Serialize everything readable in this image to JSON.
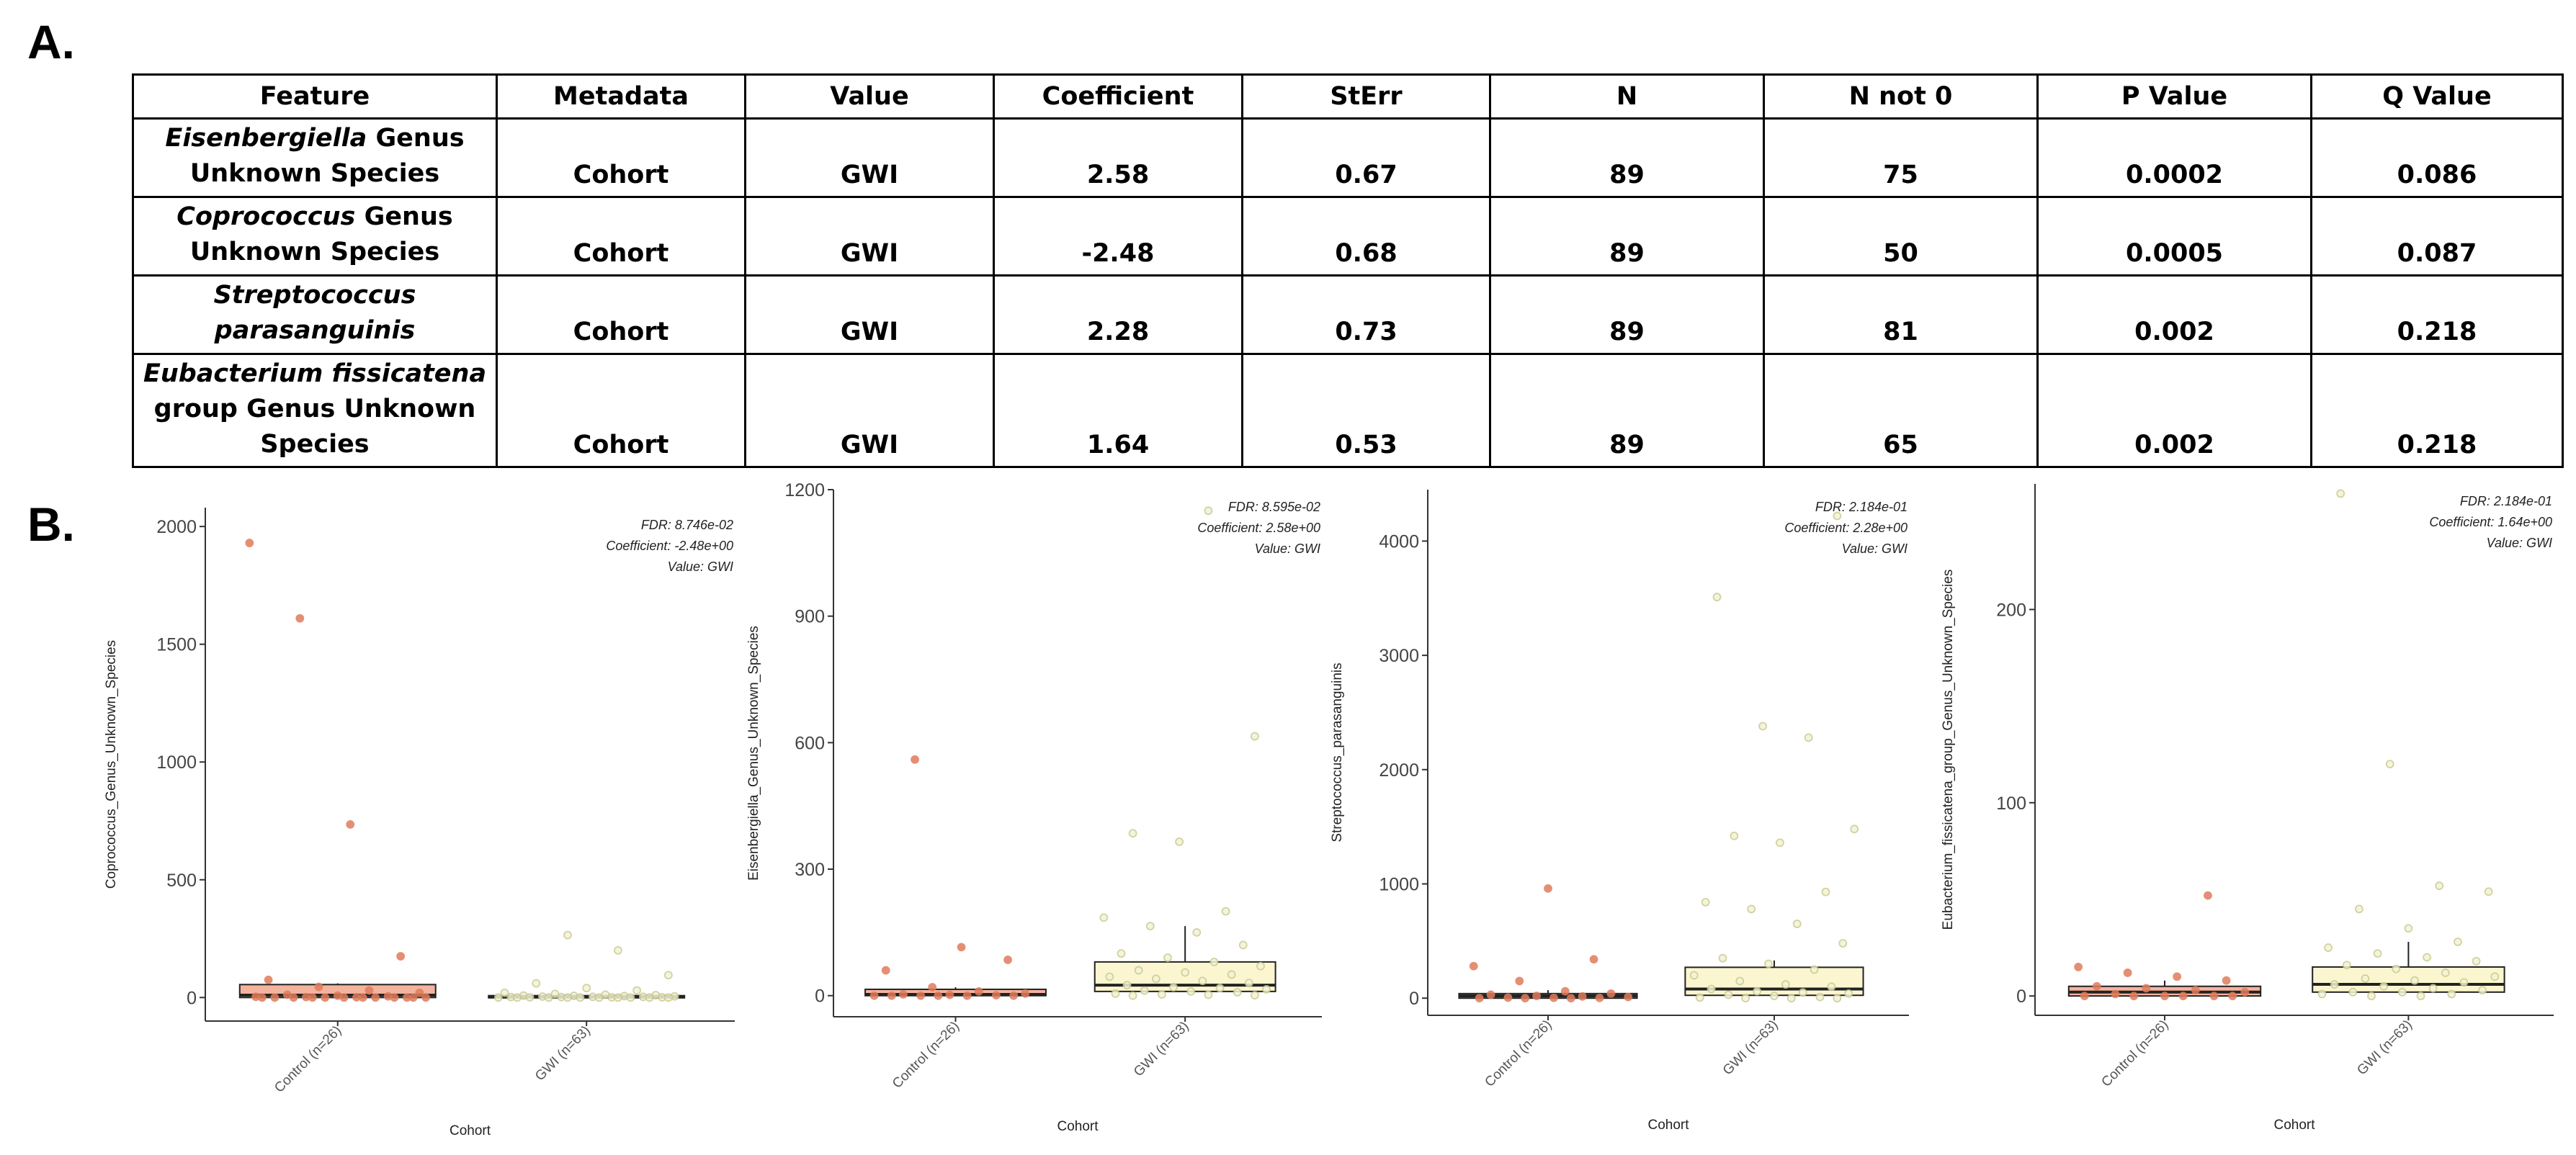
{
  "panel_a_label": "A.",
  "panel_b_label": "B.",
  "table": {
    "headers": [
      "Feature",
      "Metadata",
      "Value",
      "Coefficient",
      "StErr",
      "N",
      "N not 0",
      "P Value",
      "Q Value"
    ],
    "rows": [
      {
        "feature_italic": "Eisenbergiella",
        "feature_rest": " Genus Unknown Species",
        "metadata": "Cohort",
        "value": "GWI",
        "coefficient": "2.58",
        "sterr": "0.67",
        "n": "89",
        "n_not_0": "75",
        "p_value": "0.0002",
        "q_value": "0.086"
      },
      {
        "feature_italic": "Coprococcus",
        "feature_rest": " Genus Unknown Species",
        "metadata": "Cohort",
        "value": "GWI",
        "coefficient": "-2.48",
        "sterr": "0.68",
        "n": "89",
        "n_not_0": "50",
        "p_value": "0.0005",
        "q_value": "0.087"
      },
      {
        "feature_italic": "Streptococcus parasanguinis",
        "feature_rest": "",
        "metadata": "Cohort",
        "value": "GWI",
        "coefficient": "2.28",
        "sterr": "0.73",
        "n": "89",
        "n_not_0": "81",
        "p_value": "0.002",
        "q_value": "0.218"
      },
      {
        "feature_italic": "Eubacterium fissicatena",
        "feature_rest": " group Genus Unknown Species",
        "metadata": "Cohort",
        "value": "GWI",
        "coefficient": "1.64",
        "sterr": "0.53",
        "n": "89",
        "n_not_0": "65",
        "p_value": "0.002",
        "q_value": "0.218"
      }
    ]
  },
  "chart_data": [
    {
      "type": "box",
      "ylabel": "Coprococcus_Genus_Unknown_Species",
      "xlabel": "Cohort",
      "categories": [
        "Control (n=26)",
        "GWI (n=63)"
      ],
      "ylim": [
        -100,
        2080
      ],
      "yticks": [
        0,
        500,
        1000,
        1500,
        2000
      ],
      "annotations": [
        "FDR: 8.746e-02",
        "Coefficient: -2.48e+00",
        "Value: GWI"
      ],
      "boxes": [
        {
          "q1": 0,
          "median": 10,
          "q3": 55,
          "whisker_low": 0,
          "whisker_high": 60,
          "fill": "#f4b39d"
        },
        {
          "q1": 0,
          "median": 2,
          "q3": 8,
          "whisker_low": 0,
          "whisker_high": 10,
          "fill": "#fbf6d0"
        }
      ],
      "points": [
        [
          1930,
          1610,
          735,
          175,
          75,
          45,
          30,
          20,
          12,
          8,
          5,
          3,
          2,
          1,
          0,
          0,
          0,
          0,
          0,
          0,
          0,
          0,
          0,
          0,
          0,
          0
        ],
        [
          265,
          200,
          95,
          60,
          40,
          30,
          20,
          15,
          12,
          10,
          8,
          7,
          6,
          5,
          4,
          3,
          3,
          2,
          2,
          1,
          1,
          1,
          0,
          0,
          0,
          0,
          0,
          0,
          0,
          0,
          0,
          0
        ]
      ]
    },
    {
      "type": "box",
      "ylabel": "Eisenbergiella_Genus_Unknown_Species",
      "xlabel": "Cohort",
      "categories": [
        "Control (n=26)",
        "GWI (n=63)"
      ],
      "ylim": [
        -50,
        1200
      ],
      "yticks": [
        0,
        300,
        600,
        900,
        1200
      ],
      "annotations": [
        "FDR: 8.595e-02",
        "Coefficient: 2.58e+00",
        "Value: GWI"
      ],
      "boxes": [
        {
          "q1": 0,
          "median": 3,
          "q3": 15,
          "whisker_low": 0,
          "whisker_high": 20,
          "fill": "#f4b39d"
        },
        {
          "q1": 10,
          "median": 25,
          "q3": 80,
          "whisker_low": 0,
          "whisker_high": 165,
          "fill": "#fbf6d0"
        }
      ],
      "points": [
        [
          560,
          115,
          85,
          60,
          20,
          10,
          5,
          3,
          2,
          1,
          0,
          0,
          0,
          0,
          0,
          0
        ],
        [
          1150,
          615,
          385,
          365,
          200,
          185,
          165,
          150,
          120,
          100,
          90,
          80,
          70,
          60,
          55,
          50,
          45,
          40,
          35,
          30,
          25,
          20,
          18,
          15,
          12,
          10,
          8,
          5,
          3,
          2,
          1,
          0
        ]
      ]
    },
    {
      "type": "box",
      "ylabel": "Streptococcus_parasanguinis",
      "xlabel": "Cohort",
      "categories": [
        "Control (n=26)",
        "GWI (n=63)"
      ],
      "ylim": [
        -150,
        4450
      ],
      "yticks": [
        0,
        1000,
        2000,
        3000,
        4000
      ],
      "annotations": [
        "FDR: 2.184e-01",
        "Coefficient: 2.28e+00",
        "Value: GWI"
      ],
      "boxes": [
        {
          "q1": 0,
          "median": 20,
          "q3": 40,
          "whisker_low": 0,
          "whisker_high": 70,
          "fill": "#f4b39d"
        },
        {
          "q1": 25,
          "median": 80,
          "q3": 270,
          "whisker_low": 0,
          "whisker_high": 330,
          "fill": "#fbf6d0"
        }
      ],
      "points": [
        [
          960,
          340,
          280,
          150,
          60,
          40,
          30,
          20,
          15,
          10,
          5,
          3,
          2,
          0,
          0,
          0
        ],
        [
          4220,
          3510,
          2380,
          2280,
          1480,
          1420,
          1360,
          930,
          840,
          780,
          650,
          480,
          350,
          300,
          250,
          200,
          150,
          120,
          100,
          80,
          60,
          50,
          40,
          30,
          20,
          10,
          5,
          0,
          0,
          0
        ]
      ]
    },
    {
      "type": "box",
      "ylabel": "Eubacterium_fissicatena_group_Genus_Unknown_Species",
      "xlabel": "Cohort",
      "categories": [
        "Control (n=26)",
        "GWI (n=63)"
      ],
      "ylim": [
        -10,
        265
      ],
      "yticks": [
        0,
        100,
        200
      ],
      "annotations": [
        "FDR: 2.184e-01",
        "Coefficient: 1.64e+00",
        "Value: GWI"
      ],
      "boxes": [
        {
          "q1": 0,
          "median": 2,
          "q3": 5,
          "whisker_low": 0,
          "whisker_high": 8,
          "fill": "#f4b39d"
        },
        {
          "q1": 2,
          "median": 6,
          "q3": 15,
          "whisker_low": 0,
          "whisker_high": 28,
          "fill": "#fbf6d0"
        }
      ],
      "points": [
        [
          52,
          15,
          12,
          10,
          8,
          5,
          4,
          3,
          2,
          1,
          0,
          0,
          0,
          0,
          0,
          0
        ],
        [
          260,
          120,
          57,
          54,
          45,
          35,
          28,
          25,
          22,
          20,
          18,
          16,
          14,
          12,
          10,
          9,
          8,
          7,
          6,
          5,
          4,
          3,
          2,
          2,
          1,
          1,
          0,
          0
        ]
      ]
    }
  ]
}
